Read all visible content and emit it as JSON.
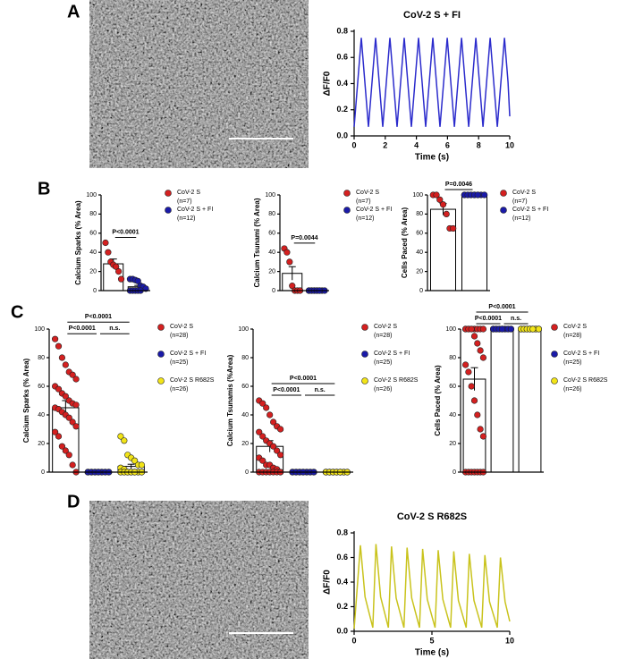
{
  "panel_labels": [
    "A",
    "B",
    "C",
    "D"
  ],
  "chart_data": [
    {
      "type": "line",
      "title": "CoV-2 S + FI",
      "xlabel": "Time (s)",
      "ylabel": "ΔF/F0",
      "x": [
        0,
        0.23,
        0.46,
        0.69,
        0.92,
        1.15,
        1.38,
        1.61,
        1.84,
        2.07,
        2.3,
        2.53,
        2.76,
        2.99,
        3.22,
        3.45,
        3.68,
        3.91,
        4.14,
        4.37,
        4.6,
        4.83,
        5.06,
        5.29,
        5.52,
        5.75,
        5.98,
        6.21,
        6.44,
        6.67,
        6.9,
        7.13,
        7.36,
        7.59,
        7.82,
        8.05,
        8.28,
        8.51,
        8.74,
        8.97,
        9.2,
        9.43,
        9.66,
        9.89,
        10.0
      ],
      "series": [
        {
          "color": "#2b2bcc",
          "values": [
            0.07,
            0.41,
            0.75,
            0.41,
            0.07,
            0.41,
            0.75,
            0.41,
            0.07,
            0.41,
            0.75,
            0.41,
            0.07,
            0.41,
            0.75,
            0.41,
            0.07,
            0.41,
            0.75,
            0.41,
            0.07,
            0.41,
            0.75,
            0.41,
            0.07,
            0.41,
            0.75,
            0.41,
            0.07,
            0.41,
            0.75,
            0.41,
            0.07,
            0.41,
            0.75,
            0.41,
            0.07,
            0.41,
            0.75,
            0.41,
            0.07,
            0.41,
            0.75,
            0.41,
            0.15
          ]
        }
      ],
      "xlim": [
        0,
        10
      ],
      "xticks": [
        0,
        2,
        4,
        6,
        8,
        10
      ],
      "ylim": [
        0,
        0.8
      ],
      "yticks": [
        {
          "value": 0,
          "label": "0.0"
        },
        {
          "value": 0.2,
          "label": "0.2"
        },
        {
          "value": 0.4,
          "label": "0.4"
        },
        {
          "value": 0.6,
          "label": "0.6"
        },
        {
          "value": 0.8,
          "label": "0.8"
        }
      ]
    },
    {
      "type": "dot_bar",
      "ylabel": "Calcium Sparks (% Area)",
      "ylim": [
        0,
        100
      ],
      "yticks": [
        0,
        20,
        40,
        60,
        80,
        100
      ],
      "series": [
        {
          "name": "CoV-2 S",
          "n_label": "(n=7)",
          "color": "#d42020",
          "mean": 28,
          "sem": 5,
          "points": [
            50,
            40,
            30,
            27,
            25,
            20,
            12
          ]
        },
        {
          "name": "CoV-2 S + FI",
          "n_label": "(n=12)",
          "color": "#1a1aa8",
          "mean": 4,
          "sem": 1.5,
          "points": [
            12,
            12,
            11,
            10,
            5,
            4,
            2,
            0,
            0,
            0,
            0,
            0
          ]
        }
      ],
      "comparisons": [
        "P<0.0001"
      ]
    },
    {
      "type": "dot_bar",
      "ylabel": "Calcium Tsunami (% Area)",
      "ylim": [
        0,
        100
      ],
      "yticks": [
        0,
        20,
        40,
        60,
        80,
        100
      ],
      "series": [
        {
          "name": "CoV-2 S",
          "n_label": "(n=7)",
          "color": "#d42020",
          "mean": 18,
          "sem": 7,
          "points": [
            44,
            40,
            30,
            5,
            0,
            0,
            0
          ]
        },
        {
          "name": "CoV-2 S + FI",
          "n_label": "(n=12)",
          "color": "#1a1aa8",
          "mean": 0,
          "sem": 0,
          "points": [
            0,
            0,
            0,
            0,
            0,
            0,
            0,
            0,
            0,
            0,
            0,
            0
          ]
        }
      ],
      "comparisons": [
        "P=0.0044"
      ]
    },
    {
      "type": "dot_bar",
      "ylabel": "Cells Paced (% Area)",
      "ylim": [
        0,
        100
      ],
      "yticks": [
        0,
        20,
        40,
        60,
        80,
        100
      ],
      "series": [
        {
          "name": "CoV-2 S",
          "n_label": "(n=7)",
          "color": "#d42020",
          "mean": 85,
          "sem": 6,
          "points": [
            100,
            100,
            95,
            90,
            80,
            65,
            65
          ]
        },
        {
          "name": "CoV-2 S + FI",
          "n_label": "(n=12)",
          "color": "#1a1aa8",
          "mean": 100,
          "sem": 0,
          "points": [
            100,
            100,
            100,
            100,
            100,
            100,
            100,
            100,
            100,
            100,
            100,
            100
          ]
        }
      ],
      "comparisons": [
        "P=0.0046"
      ]
    },
    {
      "type": "dot_bar",
      "ylabel": "Calcium Sparks (% Area)",
      "ylim": [
        0,
        100
      ],
      "yticks": [
        0,
        20,
        40,
        60,
        80,
        100
      ],
      "series": [
        {
          "name": "CoV-2 S",
          "n_label": "(n=28)",
          "color": "#d42020",
          "mean": 45,
          "sem": 5,
          "points": [
            93,
            88,
            80,
            75,
            70,
            68,
            65,
            60,
            58,
            55,
            53,
            50,
            48,
            47,
            45,
            44,
            42,
            40,
            38,
            35,
            32,
            28,
            25,
            18,
            15,
            12,
            5,
            0
          ]
        },
        {
          "name": "CoV-2 S + FI",
          "n_label": "(n=25)",
          "color": "#1a1aa8",
          "mean": 0,
          "sem": 0,
          "points": [
            0,
            0,
            0,
            0,
            0,
            0,
            0,
            0,
            0,
            0,
            0,
            0,
            0,
            0,
            0,
            0,
            0,
            0,
            0,
            0,
            0,
            0,
            0,
            0,
            0
          ]
        },
        {
          "name": "CoV-2 S R682S",
          "n_label": "(n=26)",
          "color": "#f2e417",
          "mean": 4,
          "sem": 1.5,
          "points": [
            25,
            22,
            12,
            10,
            8,
            5,
            5,
            3,
            2,
            0,
            0,
            0,
            0,
            0,
            0,
            0,
            0,
            0,
            0,
            0,
            0,
            0,
            0,
            0,
            0,
            0
          ]
        }
      ],
      "comparisons": [
        "P<0.0001",
        "n.s.",
        "P<0.0001"
      ]
    },
    {
      "type": "dot_bar",
      "ylabel": "Calcium Tsunamis (%Area)",
      "ylim": [
        0,
        100
      ],
      "yticks": [
        0,
        20,
        40,
        60,
        80,
        100
      ],
      "series": [
        {
          "name": "CoV-2 S",
          "n_label": "(n=28)",
          "color": "#d42020",
          "mean": 18,
          "sem": 4,
          "points": [
            50,
            48,
            45,
            40,
            35,
            32,
            30,
            28,
            25,
            22,
            20,
            18,
            15,
            12,
            10,
            8,
            5,
            5,
            3,
            2,
            0,
            0,
            0,
            0,
            0,
            0,
            0,
            0
          ]
        },
        {
          "name": "CoV-2 S + FI",
          "n_label": "(n=25)",
          "color": "#1a1aa8",
          "mean": 0,
          "sem": 0,
          "points": [
            0,
            0,
            0,
            0,
            0,
            0,
            0,
            0,
            0,
            0,
            0,
            0,
            0,
            0,
            0,
            0,
            0,
            0,
            0,
            0,
            0,
            0,
            0,
            0,
            0
          ]
        },
        {
          "name": "CoV-2 S R682S",
          "n_label": "(n=26)",
          "color": "#f2e417",
          "mean": 0,
          "sem": 0,
          "points": [
            0,
            0,
            0,
            0,
            0,
            0,
            0,
            0,
            0,
            0,
            0,
            0,
            0,
            0,
            0,
            0,
            0,
            0,
            0,
            0,
            0,
            0,
            0,
            0,
            0,
            0
          ]
        }
      ],
      "comparisons": [
        "P<0.0001",
        "n.s.",
        "P<0.0001"
      ]
    },
    {
      "type": "dot_bar",
      "ylabel": "Cells Paced (% Area)",
      "ylim": [
        0,
        100
      ],
      "yticks": [
        0,
        20,
        40,
        60,
        80,
        100
      ],
      "series": [
        {
          "name": "CoV-2 S",
          "n_label": "(n=28)",
          "color": "#d42020",
          "mean": 65,
          "sem": 8,
          "points": [
            100,
            100,
            100,
            100,
            100,
            100,
            100,
            100,
            100,
            100,
            95,
            90,
            85,
            80,
            75,
            70,
            60,
            50,
            40,
            30,
            25,
            0,
            0,
            0,
            0,
            0,
            0,
            0
          ]
        },
        {
          "name": "CoV-2 S + FI",
          "n_label": "(n=25)",
          "color": "#1a1aa8",
          "mean": 100,
          "sem": 0,
          "points": [
            100,
            100,
            100,
            100,
            100,
            100,
            100,
            100,
            100,
            100,
            100,
            100,
            100,
            100,
            100,
            100,
            100,
            100,
            100,
            100,
            100,
            100,
            100,
            100,
            100
          ]
        },
        {
          "name": "CoV-2 S R682S",
          "n_label": "(n=26)",
          "color": "#f2e417",
          "mean": 100,
          "sem": 0,
          "points": [
            100,
            100,
            100,
            100,
            100,
            100,
            100,
            100,
            100,
            100,
            100,
            100,
            100,
            100,
            100,
            100,
            100,
            100,
            100,
            100,
            100,
            100,
            100,
            100,
            100,
            100
          ]
        }
      ],
      "comparisons": [
        "P<0.0001",
        "n.s.",
        "P<0.0001"
      ]
    },
    {
      "type": "line",
      "title": "CoV-2 S R682S",
      "xlabel": "Time (s)",
      "ylabel": "ΔF/F0",
      "x": [
        0,
        0.4,
        0.7,
        1.2,
        1.4,
        1.7,
        2.2,
        2.4,
        2.7,
        3.2,
        3.4,
        3.7,
        4.2,
        4.4,
        4.7,
        5.2,
        5.4,
        5.7,
        6.2,
        6.4,
        6.7,
        7.2,
        7.4,
        7.7,
        8.2,
        8.4,
        8.7,
        9.2,
        9.4,
        9.7,
        10.0
      ],
      "series": [
        {
          "color": "#c9c31c",
          "values": [
            0.02,
            0.7,
            0.28,
            0.03,
            0.71,
            0.28,
            0.03,
            0.69,
            0.27,
            0.03,
            0.68,
            0.27,
            0.03,
            0.67,
            0.26,
            0.03,
            0.66,
            0.26,
            0.03,
            0.65,
            0.25,
            0.03,
            0.63,
            0.25,
            0.03,
            0.62,
            0.24,
            0.03,
            0.6,
            0.24,
            0.08
          ]
        }
      ],
      "xlim": [
        0,
        10
      ],
      "xticks": [
        0,
        5,
        10
      ],
      "ylim": [
        0,
        0.8
      ],
      "yticks": [
        {
          "value": 0,
          "label": "0.0"
        },
        {
          "value": 0.2,
          "label": "0.2"
        },
        {
          "value": 0.4,
          "label": "0.4"
        },
        {
          "value": 0.6,
          "label": "0.6"
        },
        {
          "value": 0.8,
          "label": "0.8"
        }
      ]
    }
  ]
}
